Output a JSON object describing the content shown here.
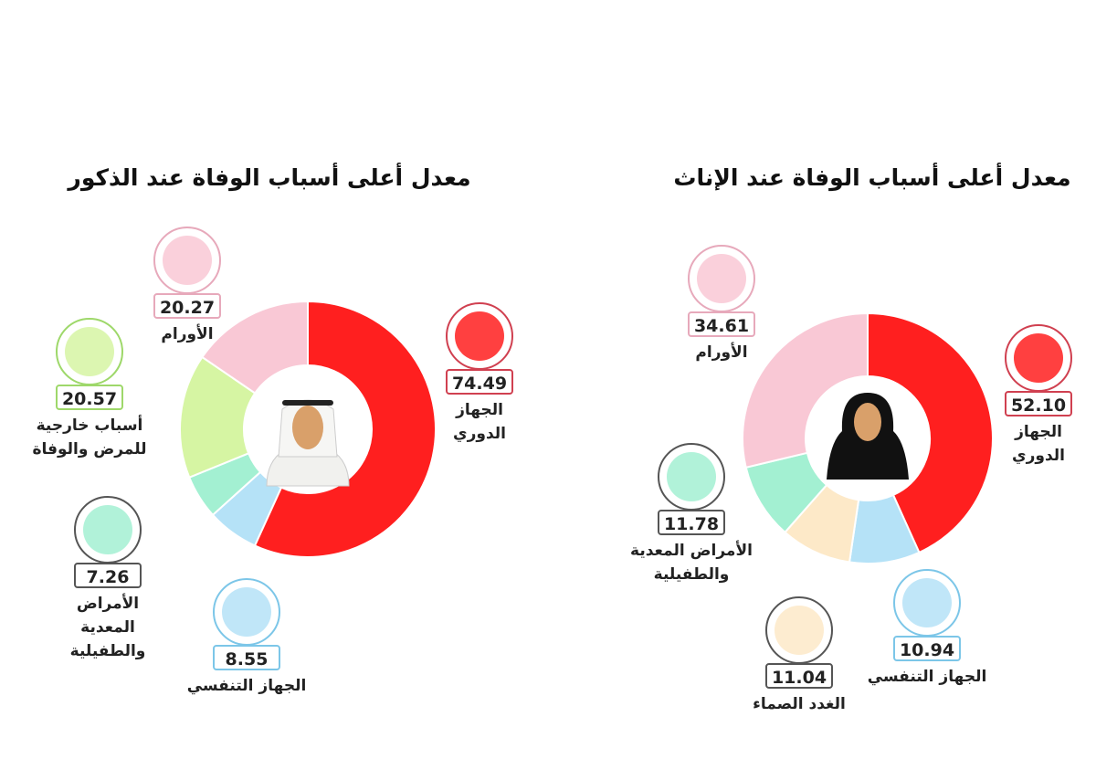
{
  "chart_data": [
    {
      "type": "pie",
      "donut": true,
      "title": "معدل أعلى أسباب الوفاة عند الذكور",
      "categories": [
        "الجهاز الدوري",
        "الجهاز التنفسي",
        "الأمراض المعدية والطفيلية",
        "أسباب خارجية للمرض والوفاة",
        "الأورام"
      ],
      "values": [
        74.49,
        8.55,
        7.26,
        20.57,
        20.27
      ],
      "value_labels": [
        "74.49",
        "8.55",
        "7.26",
        "20.57",
        "20.27"
      ],
      "colors": [
        "#ff1f1f",
        "#b5e2f7",
        "#a3f0d2",
        "#d6f5a3",
        "#f9c8d5"
      ]
    },
    {
      "type": "pie",
      "donut": true,
      "title": "معدل أعلى أسباب الوفاة عند الإناث",
      "categories": [
        "الجهاز الدوري",
        "الجهاز التنفسي",
        "الغدد الصماء",
        "الأمراض المعدية والطفيلية",
        "الأورام"
      ],
      "values": [
        52.1,
        10.94,
        11.04,
        11.78,
        34.61
      ],
      "value_labels": [
        "52.10",
        "10.94",
        "11.04",
        "11.78",
        "34.61"
      ],
      "colors": [
        "#ff1f1f",
        "#b5e2f7",
        "#fde9c8",
        "#a3f0d2",
        "#f9c8d5"
      ]
    }
  ]
}
